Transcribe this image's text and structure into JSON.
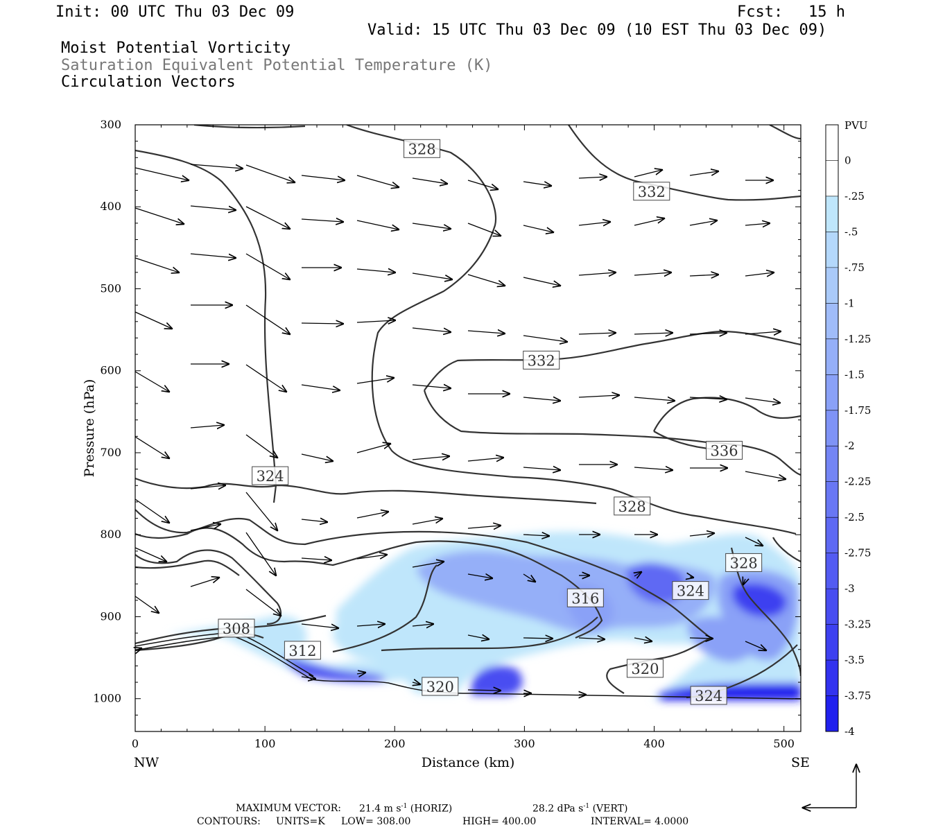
{
  "header": {
    "init": "Init: 00 UTC Thu 03 Dec 09",
    "fcst_label": "Fcst:",
    "fcst_value": "15 h",
    "valid": "Valid: 15 UTC Thu 03 Dec 09 (10 EST Thu 03 Dec 09)",
    "fields": [
      "Moist Potential Vorticity",
      "Saturation Equivalent Potential Temperature (K)",
      "Circulation Vectors"
    ]
  },
  "colors": {
    "fields": [
      "#000000",
      "#777777",
      "#000000"
    ],
    "contour": "#333333",
    "pv_scale": [
      "#ffffff",
      "#ffffff",
      "#bfe6fb",
      "#b4d8fb",
      "#aacaf9",
      "#a0bcf9",
      "#95aff8",
      "#8aa1f7",
      "#7f93f6",
      "#7485f5",
      "#6977f4",
      "#5e69f3",
      "#535bf2",
      "#484df1",
      "#3d40f0",
      "#3232ef",
      "#2020ee"
    ]
  },
  "chart_data": {
    "type": "cross-section",
    "xlabel": "Distance (km)",
    "ylabel": "Pressure (hPa)",
    "xlim": [
      0,
      513
    ],
    "ylim": [
      300,
      1040
    ],
    "x_ticks": [
      0,
      100,
      200,
      300,
      400,
      500
    ],
    "y_ticks": [
      300,
      400,
      500,
      600,
      700,
      800,
      900,
      1000
    ],
    "x_endpoints": [
      "NW",
      "SE"
    ],
    "colorbar": {
      "unit": "PVU",
      "labels": [
        "0",
        "-.25",
        "-.5",
        "-.75",
        "-1",
        "-1.25",
        "-1.5",
        "-1.75",
        "-2",
        "-2.25",
        "-2.5",
        "-2.75",
        "-3",
        "-3.25",
        "-3.5",
        "-3.75",
        "-4"
      ]
    },
    "contour_labels": [
      {
        "text": "328",
        "x": 221,
        "p": 329
      },
      {
        "text": "332",
        "x": 398,
        "p": 381
      },
      {
        "text": "332",
        "x": 313,
        "p": 587
      },
      {
        "text": "336",
        "x": 454,
        "p": 697
      },
      {
        "text": "324",
        "x": 104,
        "p": 728
      },
      {
        "text": "328",
        "x": 383,
        "p": 765
      },
      {
        "text": "328",
        "x": 469,
        "p": 834
      },
      {
        "text": "324",
        "x": 428,
        "p": 868
      },
      {
        "text": "316",
        "x": 347,
        "p": 877
      },
      {
        "text": "308",
        "x": 78,
        "p": 914
      },
      {
        "text": "312",
        "x": 129,
        "p": 941
      },
      {
        "text": "320",
        "x": 393,
        "p": 963
      },
      {
        "text": "320",
        "x": 235,
        "p": 985
      },
      {
        "text": "324",
        "x": 442,
        "p": 996
      }
    ],
    "max_vector": {
      "label": "MAXIMUM VECTOR:",
      "horiz": "21.4 m s",
      "horiz_tag": "(HORIZ)",
      "vert": "28.2 dPa s",
      "vert_tag": "(VERT)",
      "exp": "-1"
    },
    "contours_info": {
      "label": "CONTOURS:",
      "units": "UNITS=K",
      "low": "LOW=",
      "low_value": "308.00",
      "high": "HIGH=",
      "high_value": "400.00",
      "interval": "INTERVAL=",
      "interval_value": "4.0000"
    }
  }
}
